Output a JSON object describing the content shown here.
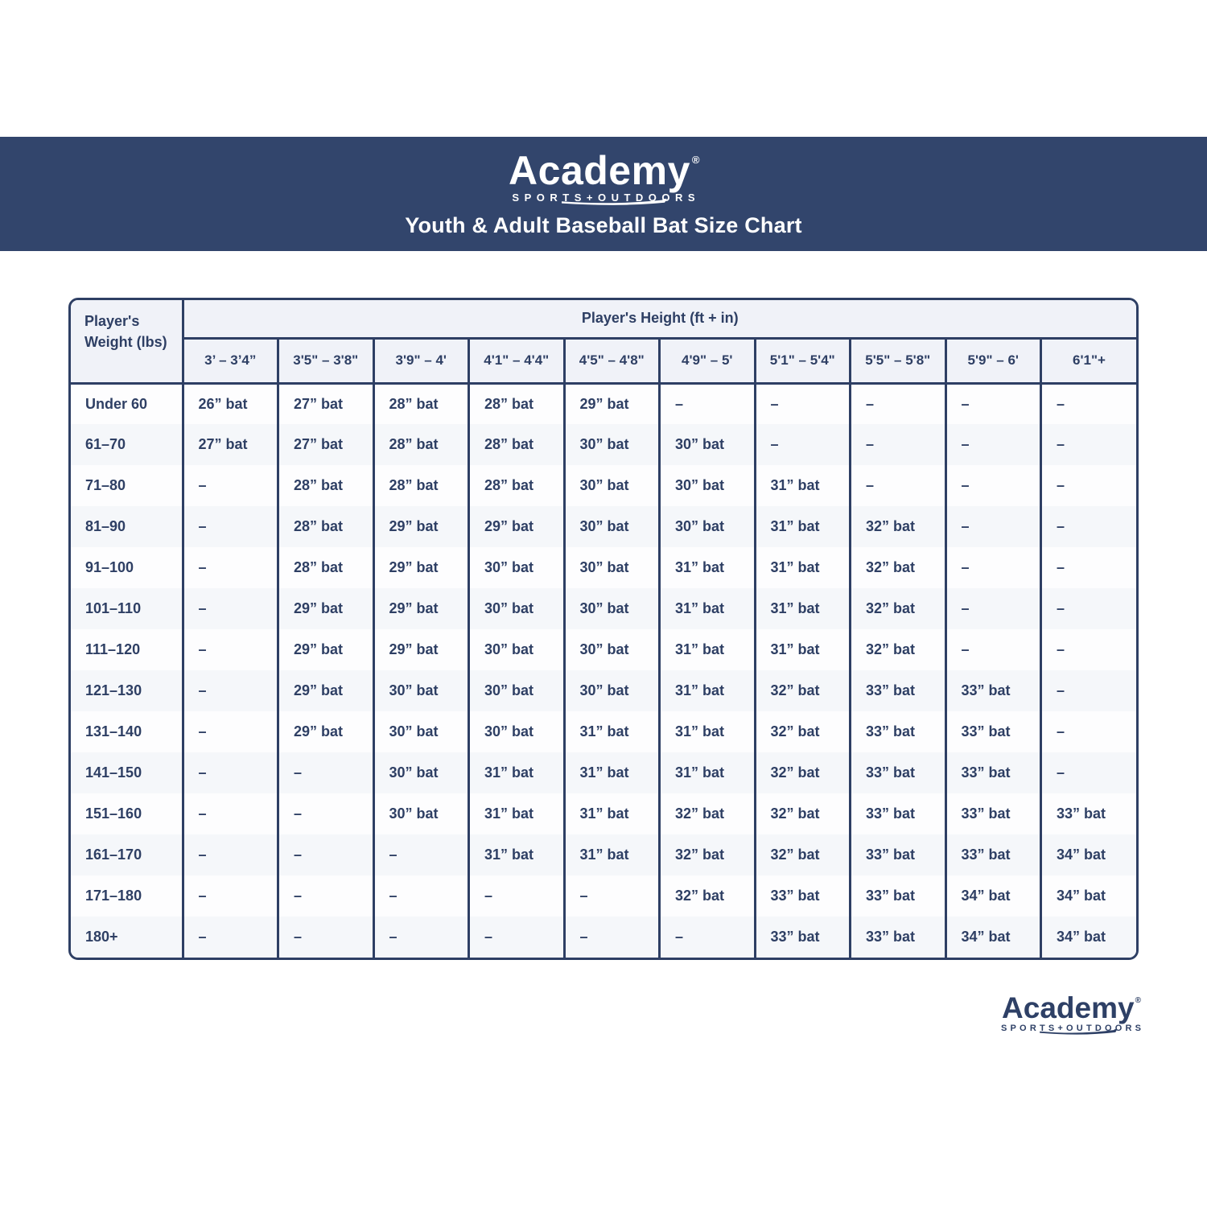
{
  "header": {
    "brand": "Academy",
    "brand_registered": "®",
    "brand_sub": "SPORTS+OUTDOORS",
    "title": "Youth & Adult Baseball Bat Size Chart"
  },
  "footer": {
    "brand": "Academy",
    "brand_registered": "®",
    "brand_sub": "SPORTS+OUTDOORS"
  },
  "colors": {
    "band_navy": "#32456c",
    "table_navy": "#2e3f64",
    "header_cell_bg": "#f0f2f8",
    "stripe_bg": "#f5f7fa",
    "white_row_bg": "#fdfdfe"
  },
  "chart_data": {
    "type": "table",
    "title": "Youth & Adult Baseball Bat Size Chart",
    "row_header": "Player's Weight (lbs)",
    "column_header": "Player's Height (ft + in)",
    "columns": [
      "3’ – 3’4”",
      "3'5\" – 3'8\"",
      "3'9\" – 4'",
      "4'1\" – 4'4\"",
      "4'5\" – 4'8\"",
      "4'9\" – 5'",
      "5'1\" – 5'4\"",
      "5'5\" – 5'8\"",
      "5'9\" – 6'",
      "6'1\"+"
    ],
    "rows": [
      {
        "weight": "Under 60",
        "values": [
          "26” bat",
          "27” bat",
          "28” bat",
          "28” bat",
          "29” bat",
          "–",
          "–",
          "–",
          "–",
          "–"
        ]
      },
      {
        "weight": "61–70",
        "values": [
          "27” bat",
          "27” bat",
          "28” bat",
          "28” bat",
          "30” bat",
          "30” bat",
          "–",
          "–",
          "–",
          "–"
        ]
      },
      {
        "weight": "71–80",
        "values": [
          "–",
          "28” bat",
          "28” bat",
          "28” bat",
          "30” bat",
          "30” bat",
          "31” bat",
          "–",
          "–",
          "–"
        ]
      },
      {
        "weight": "81–90",
        "values": [
          "–",
          "28” bat",
          "29” bat",
          "29” bat",
          "30” bat",
          "30” bat",
          "31” bat",
          "32” bat",
          "–",
          "–"
        ]
      },
      {
        "weight": "91–100",
        "values": [
          "–",
          "28” bat",
          "29” bat",
          "30” bat",
          "30” bat",
          "31” bat",
          "31” bat",
          "32” bat",
          "–",
          "–"
        ]
      },
      {
        "weight": "101–110",
        "values": [
          "–",
          "29” bat",
          "29” bat",
          "30” bat",
          "30” bat",
          "31” bat",
          "31” bat",
          "32” bat",
          "–",
          "–"
        ]
      },
      {
        "weight": "111–120",
        "values": [
          "–",
          "29” bat",
          "29” bat",
          "30” bat",
          "30” bat",
          "31” bat",
          "31” bat",
          "32” bat",
          "–",
          "–"
        ]
      },
      {
        "weight": "121–130",
        "values": [
          "–",
          "29” bat",
          "30” bat",
          "30” bat",
          "30” bat",
          "31” bat",
          "32” bat",
          "33” bat",
          "33” bat",
          "–"
        ]
      },
      {
        "weight": "131–140",
        "values": [
          "–",
          "29” bat",
          "30” bat",
          "30” bat",
          "31” bat",
          "31” bat",
          "32” bat",
          "33” bat",
          "33” bat",
          "–"
        ]
      },
      {
        "weight": "141–150",
        "values": [
          "–",
          "–",
          "30” bat",
          "31” bat",
          "31” bat",
          "31” bat",
          "32” bat",
          "33” bat",
          "33” bat",
          "–"
        ]
      },
      {
        "weight": "151–160",
        "values": [
          "–",
          "–",
          "30” bat",
          "31” bat",
          "31” bat",
          "32” bat",
          "32” bat",
          "33” bat",
          "33” bat",
          "33” bat"
        ]
      },
      {
        "weight": "161–170",
        "values": [
          "–",
          "–",
          "–",
          "31” bat",
          "31” bat",
          "32” bat",
          "32” bat",
          "33” bat",
          "33” bat",
          "34” bat"
        ]
      },
      {
        "weight": "171–180",
        "values": [
          "–",
          "–",
          "–",
          "–",
          "–",
          "32” bat",
          "33” bat",
          "33” bat",
          "34” bat",
          "34” bat"
        ]
      },
      {
        "weight": "180+",
        "values": [
          "–",
          "–",
          "–",
          "–",
          "–",
          "–",
          "33” bat",
          "33” bat",
          "34” bat",
          "34” bat"
        ]
      }
    ]
  }
}
